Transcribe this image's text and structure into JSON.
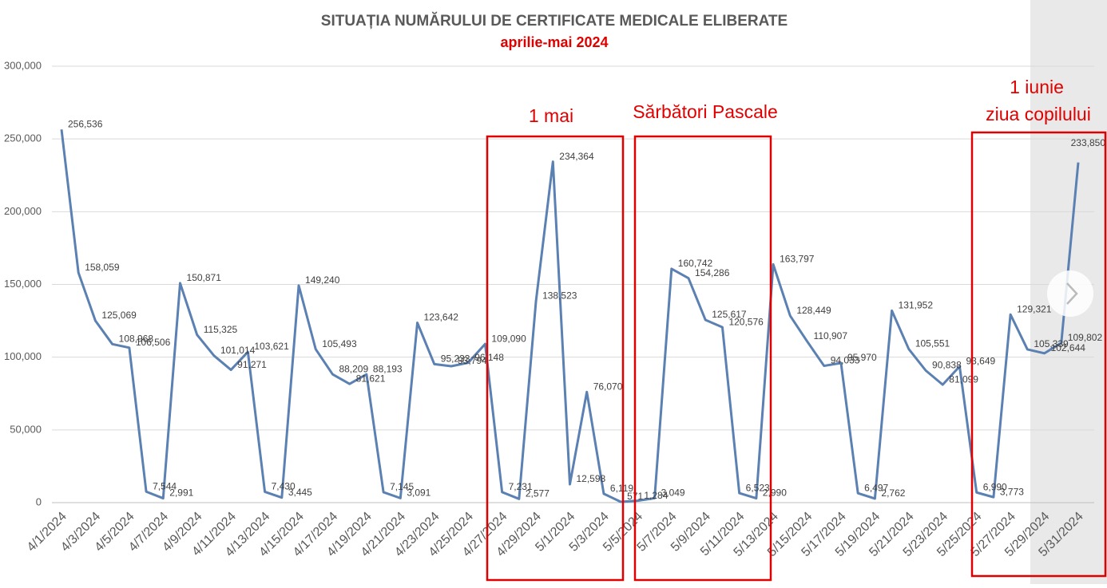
{
  "chart_data": {
    "type": "line",
    "title": "SITUAȚIA  NUMĂRULUI DE CERTIFICATE MEDICALE ELIBERATE",
    "subtitle": "aprilie-mai 2024",
    "annotations": [
      "1 mai",
      "Sărbători Pascale",
      "1 iunie",
      "ziua copilului"
    ],
    "categories": [
      "4/1/2024",
      null,
      "4/3/2024",
      null,
      "4/5/2024",
      null,
      "4/7/2024",
      null,
      "4/9/2024",
      null,
      "4/11/2024",
      null,
      "4/13/2024",
      null,
      "4/15/2024",
      null,
      "4/17/2024",
      null,
      "4/19/2024",
      null,
      "4/21/2024",
      null,
      "4/23/2024",
      null,
      "4/25/2024",
      null,
      "4/27/2024",
      null,
      "4/29/2024",
      null,
      "5/1/2024",
      null,
      "5/3/2024",
      null,
      "5/5/2024",
      null,
      "5/7/2024",
      null,
      "5/9/2024",
      null,
      "5/11/2024",
      null,
      "5/13/2024",
      null,
      "5/15/2024",
      null,
      "5/17/2024",
      null,
      "5/19/2024",
      null,
      "5/21/2024",
      null,
      "5/23/2024",
      null,
      "5/25/2024",
      null,
      "5/27/2024",
      null,
      "5/29/2024",
      null,
      "5/31/2024"
    ],
    "series": [
      {
        "color": "#5b80b2",
        "values": [
          256536,
          158059,
          125069,
          108968,
          106506,
          7544,
          2991,
          150871,
          115325,
          101014,
          91271,
          103621,
          7430,
          3445,
          149240,
          105493,
          88209,
          81621,
          88193,
          7145,
          3091,
          123642,
          95233,
          93794,
          96148,
          109090,
          7231,
          2577,
          138523,
          234364,
          12598,
          76070,
          6119,
          571,
          1284,
          3049,
          160742,
          154286,
          125617,
          120576,
          6523,
          2990,
          163797,
          128449,
          110907,
          94033,
          95970,
          6497,
          2762,
          131952,
          105551,
          90838,
          81099,
          93649,
          6990,
          3773,
          129321,
          105339,
          102644,
          109802,
          233850
        ],
        "value_labels": [
          "256,536",
          "158,059",
          "125,069",
          "108,968",
          "106,506",
          "7,544",
          "2,991",
          "150,871",
          "115,325",
          "101,014",
          "91,271",
          "103,621",
          "7,430",
          "3,445",
          "149,240",
          "105,493",
          "88,209",
          "81,621",
          "88,193",
          "7,145",
          "3,091",
          "123,642",
          "95,233",
          "93,794",
          "96,148",
          "109,090",
          "7,231",
          "2,577",
          "138,523",
          "234,364",
          "12,598",
          "76,070",
          "6,119",
          "571",
          "1,284",
          "3,049",
          "160,742",
          "154,286",
          "125,617",
          "120,576",
          "6,523",
          "2,990",
          "163,797",
          "128,449",
          "110,907",
          "94,033",
          "95,970",
          "6,497",
          "2,762",
          "131,952",
          "105,551",
          "90,838",
          "81,099",
          "93,649",
          "6,990",
          "3,773",
          "129,321",
          "105,339",
          "102,644",
          "109,802",
          "233,850"
        ]
      }
    ],
    "ylim": [
      0,
      300000
    ],
    "yticks": [
      0,
      {
        "value": 50000,
        "label": "50,000"
      },
      {
        "value": 100000,
        "label": "100,000"
      },
      {
        "value": 150000,
        "label": "150,000"
      },
      {
        "value": 200000,
        "label": "200,000"
      },
      {
        "value": 250000,
        "label": "250,000"
      },
      {
        "value": 300000,
        "label": "300,000"
      }
    ],
    "grid": true
  }
}
